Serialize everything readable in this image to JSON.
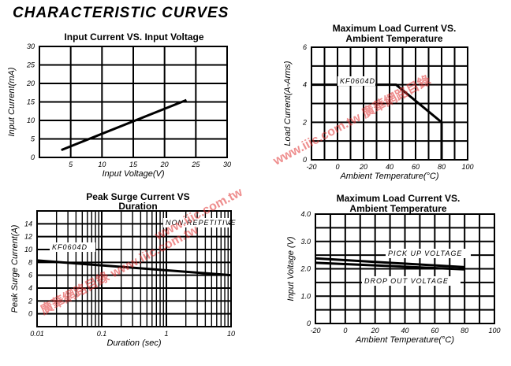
{
  "page_title": "CHARACTERISTIC CURVES",
  "watermark": {
    "text_top": "www.iiic.com.tw",
    "text_mid": "www.iiic.com.tw 廣華網路目錄",
    "text_low": "廣華網路目錄 www.iiic.com.tw",
    "color": "#e03030"
  },
  "chart_data": [
    {
      "id": "input",
      "type": "line",
      "title": [
        "Input Current VS. Input Voltage"
      ],
      "xlabel": "Input  Voltage(V)",
      "ylabel": "Input Current(mA)",
      "xlim": [
        0,
        30
      ],
      "ylim": [
        0,
        30
      ],
      "xticks": [
        "5",
        "10",
        "15",
        "20",
        "25",
        "30"
      ],
      "yticks": [
        "0",
        "5",
        "10",
        "15",
        "20",
        "25",
        "30"
      ],
      "series": [
        {
          "name": "Input Current",
          "x": [
            3.5,
            23.5
          ],
          "y": [
            2,
            15.5
          ]
        }
      ],
      "annotations": []
    },
    {
      "id": "load",
      "type": "line",
      "title": [
        "Maximum Load Current VS.",
        "Ambient  Temperature"
      ],
      "xlabel": "Ambient Temperature(°C)",
      "ylabel": "Load Current(A-Arms)",
      "xlim": [
        -20,
        100
      ],
      "ylim": [
        0,
        6
      ],
      "xticks": [
        "-20",
        "0",
        "20",
        "40",
        "60",
        "80",
        "100"
      ],
      "yticks": [
        "0",
        "2",
        "4",
        "6"
      ],
      "series": [
        {
          "name": "KF0604D",
          "x": [
            -20,
            45,
            80,
            80
          ],
          "y": [
            4,
            4,
            2,
            0
          ]
        }
      ],
      "annotations": [
        "KF0604D"
      ]
    },
    {
      "id": "surge",
      "type": "line",
      "title": [
        "Peak Surge Current VS",
        "Duration"
      ],
      "xlabel": "Duration (sec)",
      "ylabel": "Peak Surge Current(A)",
      "xscale": "log",
      "xlim": [
        0.01,
        10
      ],
      "ylim": [
        -2,
        16
      ],
      "xticks": [
        "0.01",
        "0.1",
        "1",
        "10"
      ],
      "yticks": [
        "0",
        "2",
        "4",
        "6",
        "8",
        "10",
        "12",
        "14"
      ],
      "series": [
        {
          "name": "KF0604D",
          "x": [
            0.01,
            10
          ],
          "y": [
            8.3,
            6.0
          ]
        }
      ],
      "annotations": [
        "KF0604D",
        "NON-REPETITIVE"
      ]
    },
    {
      "id": "voltage",
      "type": "line",
      "title": [
        "Maximum Load Current VS.",
        "Ambient  Temperature"
      ],
      "xlabel": "Ambient Temperature(°C)",
      "ylabel": "Input Voltage (V)",
      "xlim": [
        -20,
        100
      ],
      "ylim": [
        0,
        4
      ],
      "xticks": [
        "-20",
        "0",
        "20",
        "40",
        "60",
        "80",
        "100"
      ],
      "yticks": [
        "0",
        "1.0",
        "2.0",
        "3.0",
        "4.0"
      ],
      "series": [
        {
          "name": "PICK UP VOLTAGE",
          "x": [
            -20,
            80
          ],
          "y": [
            2.38,
            2.06
          ]
        },
        {
          "name": "DROP OUT VOLTAGE",
          "x": [
            -20,
            80
          ],
          "y": [
            2.22,
            1.98
          ]
        }
      ],
      "annotations": [
        "PICK UP VOLTAGE",
        "DROP OUT VOLTAGE"
      ]
    }
  ]
}
